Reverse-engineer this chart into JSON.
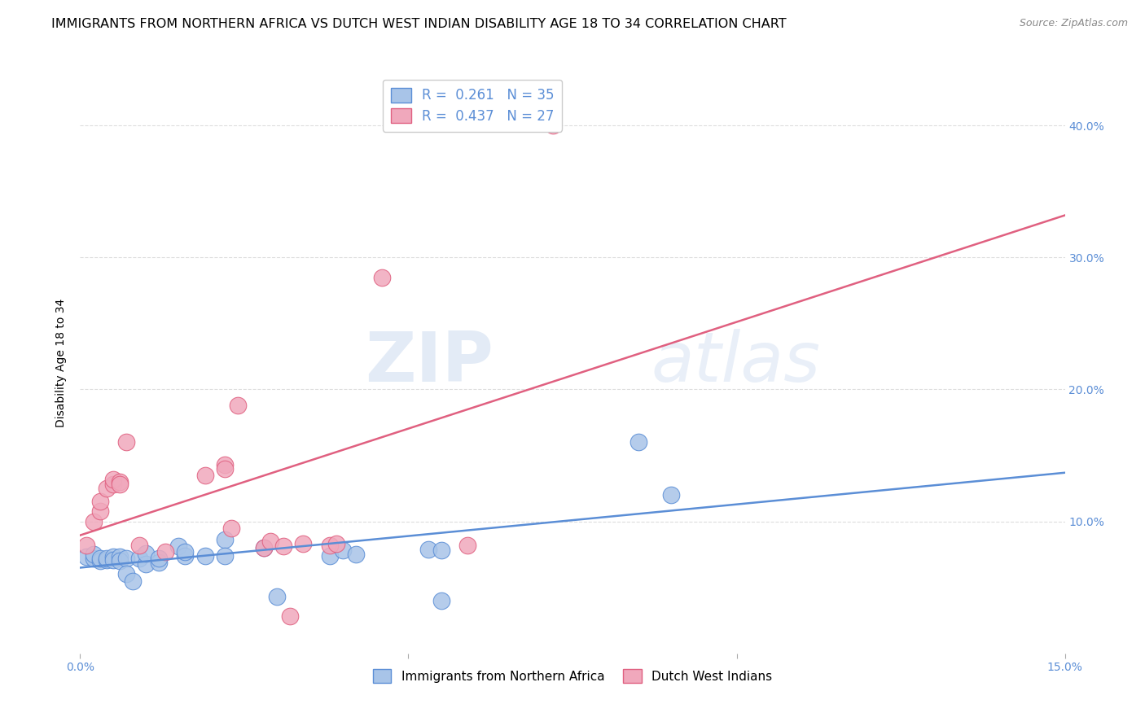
{
  "title": "IMMIGRANTS FROM NORTHERN AFRICA VS DUTCH WEST INDIAN DISABILITY AGE 18 TO 34 CORRELATION CHART",
  "source": "Source: ZipAtlas.com",
  "ylabel": "Disability Age 18 to 34",
  "xlim": [
    0.0,
    0.15
  ],
  "ylim": [
    0.0,
    0.44
  ],
  "xticks": [
    0.0,
    0.05,
    0.1,
    0.15
  ],
  "xtick_labels": [
    "0.0%",
    "",
    "",
    "15.0%"
  ],
  "yticks": [
    0.1,
    0.2,
    0.3,
    0.4
  ],
  "ytick_labels": [
    "10.0%",
    "20.0%",
    "30.0%",
    "40.0%"
  ],
  "blue_R": 0.261,
  "blue_N": 35,
  "pink_R": 0.437,
  "pink_N": 27,
  "blue_color": "#A8C4E8",
  "pink_color": "#F0A8BC",
  "blue_line_color": "#5B8ED6",
  "pink_line_color": "#E06080",
  "blue_scatter": [
    [
      0.001,
      0.073
    ],
    [
      0.002,
      0.072
    ],
    [
      0.002,
      0.075
    ],
    [
      0.003,
      0.07
    ],
    [
      0.003,
      0.072
    ],
    [
      0.004,
      0.071
    ],
    [
      0.004,
      0.072
    ],
    [
      0.005,
      0.073
    ],
    [
      0.005,
      0.071
    ],
    [
      0.006,
      0.073
    ],
    [
      0.006,
      0.07
    ],
    [
      0.007,
      0.072
    ],
    [
      0.007,
      0.06
    ],
    [
      0.008,
      0.055
    ],
    [
      0.009,
      0.072
    ],
    [
      0.01,
      0.068
    ],
    [
      0.01,
      0.076
    ],
    [
      0.012,
      0.069
    ],
    [
      0.012,
      0.072
    ],
    [
      0.015,
      0.081
    ],
    [
      0.016,
      0.074
    ],
    [
      0.016,
      0.077
    ],
    [
      0.019,
      0.074
    ],
    [
      0.022,
      0.086
    ],
    [
      0.022,
      0.074
    ],
    [
      0.028,
      0.08
    ],
    [
      0.03,
      0.043
    ],
    [
      0.038,
      0.074
    ],
    [
      0.04,
      0.078
    ],
    [
      0.042,
      0.075
    ],
    [
      0.053,
      0.079
    ],
    [
      0.055,
      0.078
    ],
    [
      0.055,
      0.04
    ],
    [
      0.085,
      0.16
    ],
    [
      0.09,
      0.12
    ]
  ],
  "pink_scatter": [
    [
      0.001,
      0.082
    ],
    [
      0.002,
      0.1
    ],
    [
      0.003,
      0.108
    ],
    [
      0.003,
      0.115
    ],
    [
      0.004,
      0.125
    ],
    [
      0.005,
      0.128
    ],
    [
      0.005,
      0.132
    ],
    [
      0.006,
      0.13
    ],
    [
      0.006,
      0.128
    ],
    [
      0.007,
      0.16
    ],
    [
      0.009,
      0.082
    ],
    [
      0.013,
      0.077
    ],
    [
      0.019,
      0.135
    ],
    [
      0.022,
      0.143
    ],
    [
      0.022,
      0.14
    ],
    [
      0.023,
      0.095
    ],
    [
      0.024,
      0.188
    ],
    [
      0.028,
      0.08
    ],
    [
      0.029,
      0.085
    ],
    [
      0.031,
      0.081
    ],
    [
      0.032,
      0.028
    ],
    [
      0.034,
      0.083
    ],
    [
      0.038,
      0.082
    ],
    [
      0.039,
      0.083
    ],
    [
      0.046,
      0.285
    ],
    [
      0.059,
      0.082
    ],
    [
      0.072,
      0.4
    ]
  ],
  "background_color": "#FFFFFF",
  "grid_color": "#DDDDDD",
  "title_fontsize": 11.5,
  "label_fontsize": 10,
  "tick_fontsize": 10,
  "watermark_zip": "ZIP",
  "watermark_atlas": "atlas",
  "legend_label_blue": "Immigrants from Northern Africa",
  "legend_label_pink": "Dutch West Indians"
}
